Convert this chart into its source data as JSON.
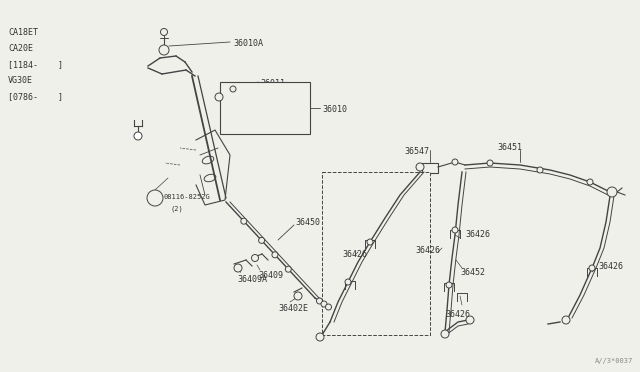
{
  "bg_color": "#f0f0eb",
  "line_color": "#444444",
  "text_color": "#333333",
  "diagram_code": "A//3*0037",
  "left_labels": [
    "CA18ET",
    "CA20E",
    "[1184-    ]",
    "VG30E",
    "[0786-    ]"
  ]
}
